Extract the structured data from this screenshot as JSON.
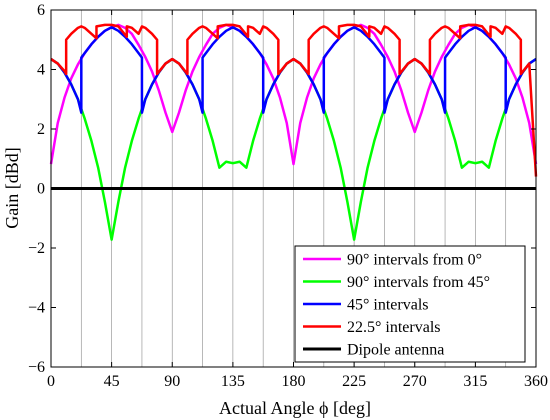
{
  "chart_data": {
    "type": "line",
    "xlabel": "Actual Angle  ϕ [deg]",
    "ylabel": "Gain [dBd]",
    "xlim": [
      0,
      360
    ],
    "ylim": [
      -6,
      6
    ],
    "xticks": [
      0,
      45,
      90,
      135,
      180,
      225,
      270,
      315,
      360
    ],
    "yticks": [
      -6,
      -4,
      -2,
      0,
      2,
      4,
      6
    ],
    "xtick_labels": [
      "0",
      "45",
      "90",
      "135",
      "180",
      "225",
      "270",
      "315",
      "360"
    ],
    "ytick_labels": [
      "−6",
      "−4",
      "−2",
      "0",
      "2",
      "4",
      "6"
    ],
    "grid": "vertical lines every 22.5°",
    "legend_position": "lower-right",
    "series": [
      {
        "name": "90°  intervals from 0°",
        "color": "#ff00ff",
        "x": [
          0,
          5,
          10,
          15,
          20,
          25,
          30,
          35,
          40,
          45,
          50,
          55,
          60,
          65,
          70,
          75,
          80,
          85,
          90,
          95,
          100,
          105,
          110,
          115,
          120,
          125,
          130,
          135,
          140,
          145,
          150,
          155,
          160,
          165,
          170,
          175,
          180,
          185,
          190,
          195,
          200,
          205,
          210,
          215,
          220,
          225,
          230,
          235,
          240,
          245,
          250,
          255,
          260,
          265,
          270,
          275,
          280,
          285,
          290,
          295,
          300,
          305,
          310,
          315,
          320,
          325,
          330,
          335,
          340,
          345,
          350,
          355,
          360
        ],
        "y": [
          0.82,
          2.2,
          3.05,
          3.7,
          4.17,
          4.55,
          4.85,
          5.1,
          5.3,
          5.42,
          5.5,
          5.4,
          5.2,
          4.83,
          4.42,
          3.93,
          3.3,
          2.55,
          1.9,
          2.55,
          3.3,
          3.93,
          4.42,
          4.83,
          5.2,
          5.4,
          5.5,
          5.42,
          5.3,
          5.1,
          4.85,
          4.55,
          4.17,
          3.7,
          3.05,
          2.2,
          0.82,
          2.2,
          3.05,
          3.7,
          4.17,
          4.55,
          4.85,
          5.1,
          5.3,
          5.42,
          5.5,
          5.4,
          5.2,
          4.83,
          4.42,
          3.93,
          3.3,
          2.55,
          1.9,
          2.55,
          3.3,
          3.93,
          4.42,
          4.83,
          5.2,
          5.4,
          5.5,
          5.42,
          5.3,
          5.1,
          4.85,
          4.55,
          4.17,
          3.7,
          3.05,
          2.2,
          0.82
        ]
      },
      {
        "name": "90°  intervals from 45°",
        "color": "#00ff00",
        "x": [
          0,
          5,
          10,
          15,
          20,
          25,
          30,
          35,
          40,
          45,
          50,
          55,
          60,
          65,
          70,
          75,
          80,
          85,
          90,
          95,
          100,
          105,
          110,
          115,
          120,
          125,
          130,
          135,
          140,
          145,
          150,
          155,
          160,
          165,
          170,
          175,
          180,
          185,
          190,
          195,
          200,
          205,
          210,
          215,
          220,
          225,
          230,
          235,
          240,
          245,
          250,
          255,
          260,
          265,
          270,
          275,
          280,
          285,
          290,
          295,
          300,
          305,
          310,
          315,
          320,
          325,
          330,
          335,
          340,
          345,
          350,
          355,
          360
        ],
        "y": [
          4.35,
          4.2,
          3.9,
          3.5,
          3.0,
          2.35,
          1.6,
          0.7,
          -0.45,
          -1.72,
          -0.45,
          0.7,
          1.6,
          2.35,
          3.0,
          3.5,
          3.9,
          4.2,
          4.35,
          4.2,
          3.9,
          3.5,
          3.0,
          2.35,
          1.6,
          0.7,
          0.9,
          0.85,
          0.9,
          0.7,
          1.6,
          2.35,
          3.0,
          3.5,
          3.9,
          4.2,
          4.35,
          4.2,
          3.9,
          3.5,
          3.0,
          2.35,
          1.6,
          0.7,
          -0.45,
          -1.72,
          -0.45,
          0.7,
          1.6,
          2.35,
          3.0,
          3.5,
          3.9,
          4.2,
          4.35,
          4.2,
          3.9,
          3.5,
          3.0,
          2.35,
          1.6,
          0.7,
          0.9,
          0.85,
          0.9,
          0.7,
          1.6,
          2.35,
          3.0,
          3.5,
          3.9,
          4.2,
          4.35
        ]
      },
      {
        "name": "45°  intervals",
        "color": "#0000ff",
        "x": [
          0,
          5,
          10,
          15,
          20,
          22.5,
          22.5,
          25,
          30,
          35,
          40,
          45,
          50,
          55,
          60,
          65,
          67.5,
          67.5,
          70,
          75,
          80,
          85,
          90,
          95,
          100,
          105,
          110,
          112.5,
          112.5,
          115,
          120,
          125,
          130,
          135,
          140,
          145,
          150,
          155,
          157.5,
          157.5,
          160,
          165,
          170,
          175,
          180,
          185,
          190,
          195,
          200,
          202.5,
          202.5,
          205,
          210,
          215,
          220,
          225,
          230,
          235,
          240,
          245,
          247.5,
          247.5,
          250,
          255,
          260,
          265,
          270,
          275,
          280,
          285,
          290,
          292.5,
          292.5,
          295,
          300,
          305,
          310,
          315,
          320,
          325,
          330,
          335,
          337.5,
          337.5,
          340,
          345,
          350,
          355,
          360
        ],
        "y": [
          4.35,
          4.2,
          3.9,
          3.5,
          3.0,
          2.55,
          4.4,
          4.55,
          4.85,
          5.1,
          5.3,
          5.42,
          5.3,
          5.1,
          4.85,
          4.55,
          4.4,
          2.55,
          3.0,
          3.5,
          3.9,
          4.2,
          4.35,
          4.2,
          3.9,
          3.5,
          3.0,
          2.55,
          4.4,
          4.55,
          4.85,
          5.1,
          5.3,
          5.42,
          5.3,
          5.1,
          4.85,
          4.55,
          4.4,
          2.55,
          3.0,
          3.5,
          3.9,
          4.2,
          4.35,
          4.2,
          3.9,
          3.5,
          3.0,
          2.55,
          4.4,
          4.55,
          4.85,
          5.1,
          5.3,
          5.42,
          5.3,
          5.1,
          4.85,
          4.55,
          4.4,
          2.55,
          3.0,
          3.5,
          3.9,
          4.2,
          4.35,
          4.2,
          3.9,
          3.5,
          3.0,
          2.55,
          4.4,
          4.55,
          4.85,
          5.1,
          5.3,
          5.42,
          5.3,
          5.1,
          4.85,
          4.55,
          4.4,
          2.55,
          3.0,
          3.5,
          3.9,
          4.2,
          4.35
        ]
      },
      {
        "name": "22.5°  intervals",
        "color": "#ff0000",
        "x": [
          0,
          5,
          10,
          11.25,
          11.25,
          15,
          20,
          22.5,
          25,
          30,
          33.75,
          33.75,
          40,
          45,
          50,
          56.25,
          56.25,
          60,
          65,
          67.5,
          70,
          75,
          78.75,
          78.75,
          85,
          90,
          95,
          101.25,
          101.25,
          105,
          110,
          112.5,
          115,
          120,
          123.75,
          123.75,
          130,
          135,
          140,
          146.25,
          146.25,
          150,
          155,
          157.5,
          160,
          165,
          168.75,
          168.75,
          175,
          180,
          185,
          191.25,
          191.25,
          195,
          200,
          202.5,
          205,
          210,
          213.75,
          213.75,
          220,
          225,
          230,
          236.25,
          236.25,
          240,
          245,
          247.5,
          250,
          255,
          258.75,
          258.75,
          265,
          270,
          275,
          281.25,
          281.25,
          285,
          290,
          292.5,
          295,
          300,
          303.75,
          303.75,
          310,
          315,
          320,
          326.25,
          326.25,
          330,
          335,
          337.5,
          340,
          345,
          348.75,
          348.75,
          355,
          360
        ],
        "y": [
          4.35,
          4.2,
          3.95,
          3.85,
          5.0,
          5.2,
          5.4,
          5.45,
          5.4,
          5.2,
          5.05,
          5.45,
          5.5,
          5.5,
          5.45,
          5.1,
          5.45,
          5.4,
          5.2,
          5.45,
          5.4,
          5.2,
          5.0,
          3.85,
          4.2,
          4.35,
          4.2,
          3.85,
          5.0,
          5.2,
          5.4,
          5.45,
          5.4,
          5.2,
          5.05,
          5.45,
          5.5,
          5.5,
          5.45,
          5.1,
          5.45,
          5.4,
          5.2,
          5.45,
          5.4,
          5.2,
          5.0,
          3.85,
          4.2,
          4.35,
          4.2,
          3.85,
          5.0,
          5.2,
          5.4,
          5.45,
          5.4,
          5.2,
          5.05,
          5.45,
          5.5,
          5.5,
          5.45,
          5.1,
          5.45,
          5.4,
          5.2,
          5.45,
          5.4,
          5.2,
          5.0,
          3.85,
          4.2,
          4.35,
          4.2,
          3.85,
          5.0,
          5.2,
          5.4,
          5.45,
          5.4,
          5.2,
          5.05,
          5.45,
          5.5,
          5.5,
          5.45,
          5.1,
          5.45,
          5.4,
          5.2,
          5.45,
          5.4,
          5.2,
          5.0,
          3.85,
          4.2,
          0.4
        ]
      },
      {
        "name": "Dipole antenna",
        "color": "#000000",
        "x": [
          0,
          360
        ],
        "y": [
          0,
          0
        ]
      }
    ]
  }
}
